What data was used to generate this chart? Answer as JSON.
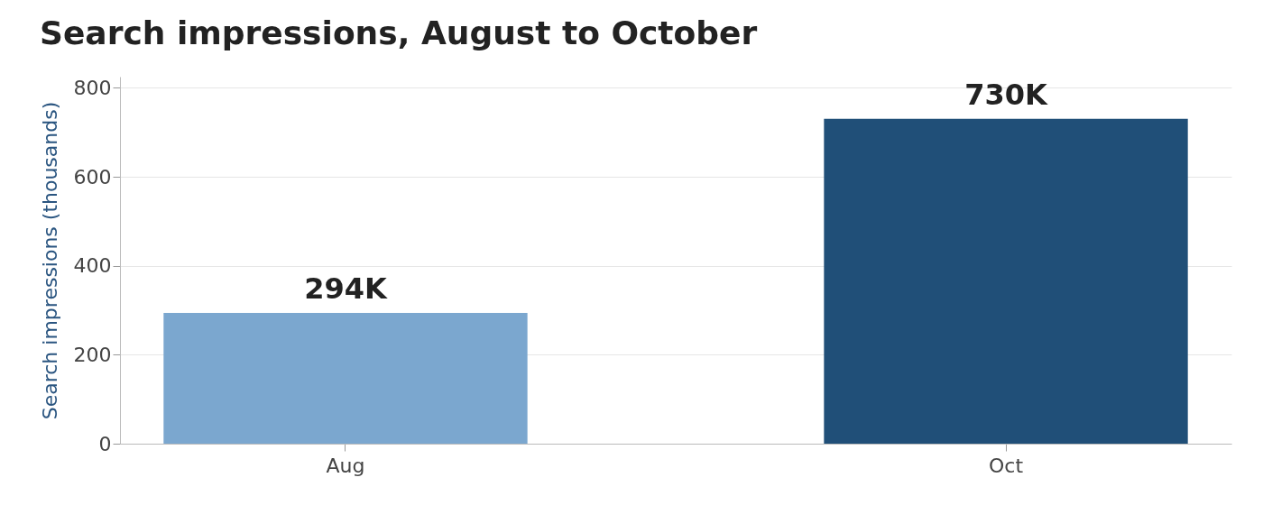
{
  "chart_data": {
    "type": "bar",
    "title": "Search impressions, August to October",
    "ylabel": "Search impressions (thousands)",
    "categories": [
      "Aug",
      "Oct"
    ],
    "values": [
      294,
      730
    ],
    "colors": [
      "#7ba7cf",
      "#204f78"
    ],
    "value_labels": [
      "294K",
      "730K"
    ],
    "ylim": [
      0,
      825
    ],
    "yticks": [
      0,
      200,
      400,
      600,
      800
    ],
    "grid": "y"
  }
}
